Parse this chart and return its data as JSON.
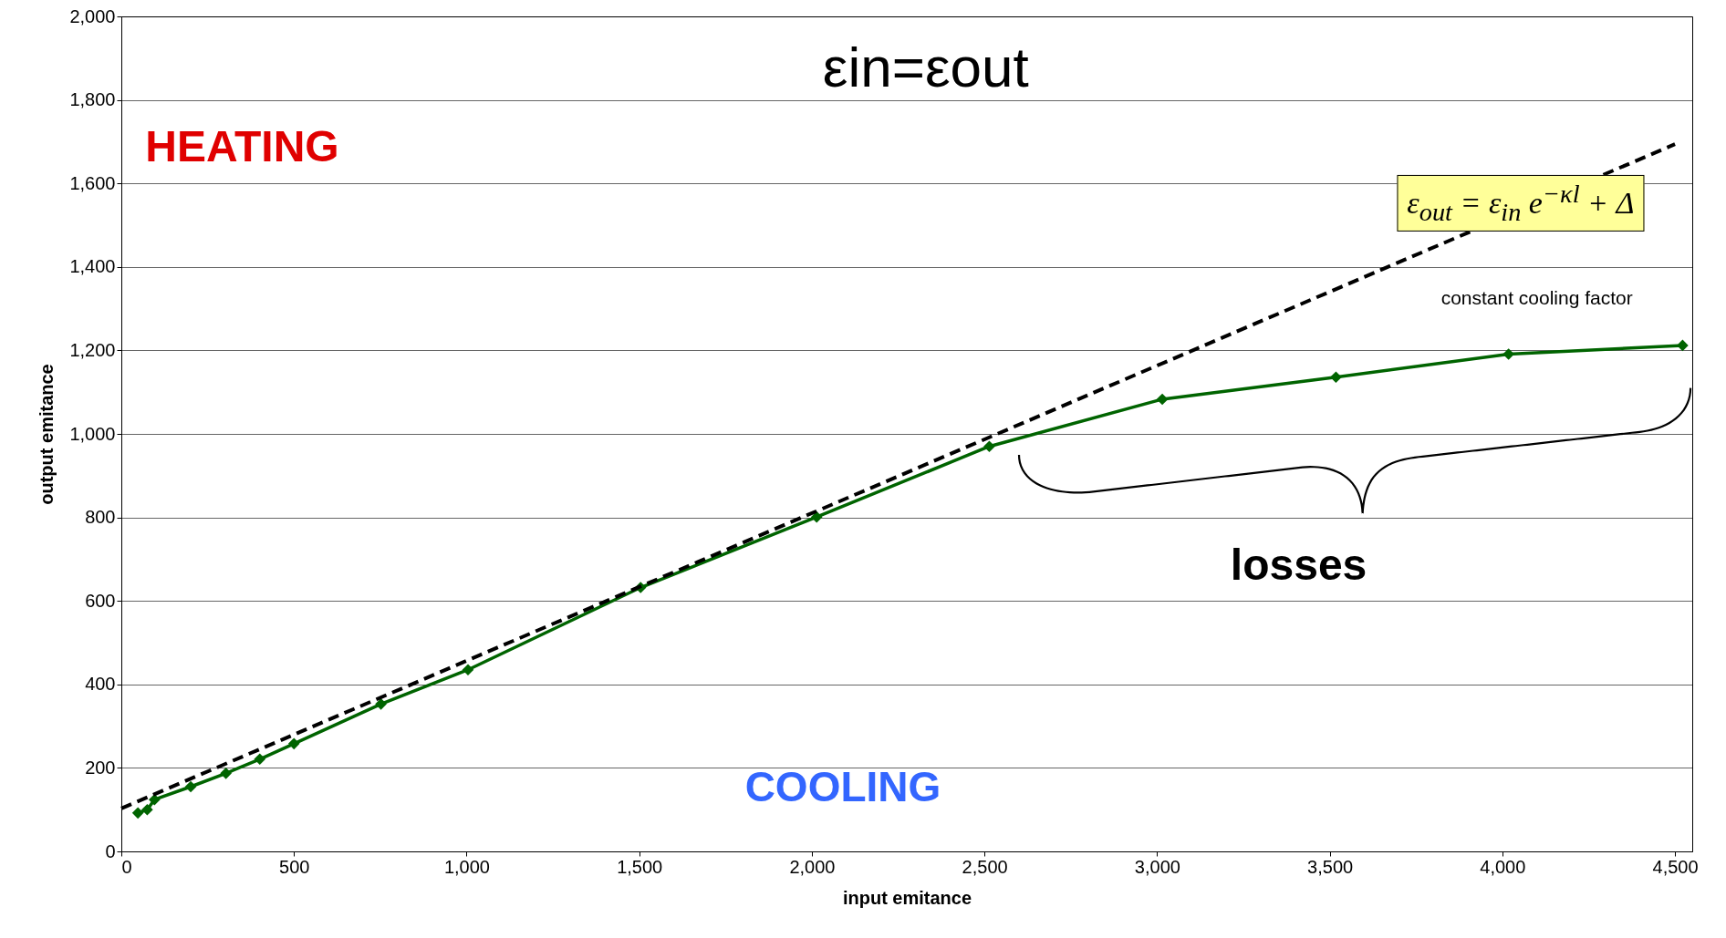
{
  "chart_data": {
    "type": "line",
    "xlabel": "input emitance",
    "ylabel": "output emitance",
    "xlim": [
      0,
      4550
    ],
    "xticks": [
      0,
      500,
      {
        "value": 1000,
        "label": "1,000"
      },
      {
        "value": 1500,
        "label": "1,500"
      },
      {
        "value": 2000,
        "label": "2,000"
      },
      {
        "value": 2500,
        "label": "2,500"
      },
      {
        "value": 3000,
        "label": "3,000"
      },
      {
        "value": 3500,
        "label": "3,500"
      },
      {
        "value": 4000,
        "label": "4,000"
      },
      {
        "value": 4500,
        "label": "4,500"
      }
    ],
    "ylim": [
      0,
      2000
    ],
    "yticks": [
      0,
      200,
      400,
      600,
      800,
      {
        "value": 1000,
        "label": "1,000"
      },
      {
        "value": 1200,
        "label": "1,200"
      },
      {
        "value": 1400,
        "label": "1,400"
      },
      {
        "value": 1600,
        "label": "1,600"
      },
      {
        "value": 1800,
        "label": "1,800"
      },
      {
        "value": 2000,
        "label": "2,000"
      }
    ],
    "grid": "y",
    "marker": "diamond",
    "series": [
      {
        "color": "#006400",
        "line_style": "solid",
        "x": [
          48,
          75,
          96,
          201,
          303,
          401,
          500,
          752,
          1004,
          1504,
          2014,
          2514,
          3015,
          3518,
          4018,
          4522
        ],
        "values": [
          92,
          100,
          124,
          155,
          187,
          221,
          258,
          353,
          435,
          632,
          801,
          970,
          1083,
          1136,
          1191,
          1212
        ]
      },
      {
        "color": "#000000",
        "line_style": "dashed",
        "marker": "none",
        "x": [
          0,
          4500
        ],
        "values": [
          103,
          1694
        ]
      }
    ],
    "annotations": [
      "εin=εout",
      "HEATING",
      "COOLING",
      "ε$_{out}$ = ε$_{in}$ e$^{−κl}$ + Δ",
      "constant cooling factor",
      "losses"
    ]
  }
}
